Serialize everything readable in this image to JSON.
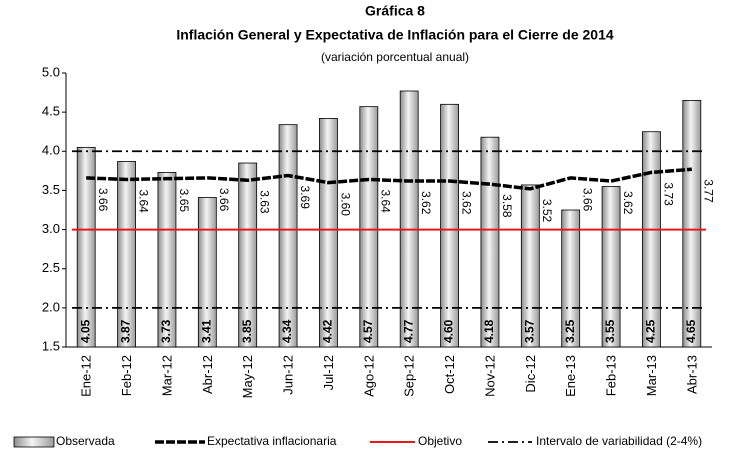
{
  "chart_data": {
    "type": "bar-line",
    "title": "Gráfica 8",
    "subtitle": "Inflación General y Expectativa de Inflación para el Cierre de 2014",
    "note": "(variación porcentual anual)",
    "categories": [
      "Ene-12",
      "Feb-12",
      "Mar-12",
      "Abr-12",
      "May-12",
      "Jun-12",
      "Jul-12",
      "Ago-12",
      "Sep-12",
      "Oct-12",
      "Nov-12",
      "Dic-12",
      "Ene-13",
      "Feb-13",
      "Mar-13",
      "Abr-13"
    ],
    "series": [
      {
        "name": "Observada",
        "type": "bar",
        "color": "#999999",
        "values": [
          4.05,
          3.87,
          3.73,
          3.41,
          3.85,
          4.34,
          4.42,
          4.57,
          4.77,
          4.6,
          4.18,
          3.57,
          3.25,
          3.55,
          4.25,
          4.65
        ],
        "value_labels": [
          "4.05",
          "3.87",
          "3.73",
          "3.41",
          "3.85",
          "4.34",
          "4.42",
          "4.57",
          "4.77",
          "4.60",
          "4.18",
          "3.57",
          "3.25",
          "3.55",
          "4.25",
          "4.65"
        ]
      },
      {
        "name": "Expectativa inflacionaria",
        "type": "line",
        "color": "#000000",
        "values": [
          3.66,
          3.64,
          3.65,
          3.66,
          3.63,
          3.69,
          3.6,
          3.64,
          3.62,
          3.62,
          3.58,
          3.52,
          3.66,
          3.62,
          3.73,
          3.77
        ],
        "value_labels": [
          "3.66",
          "3.64",
          "3.65",
          "3.66",
          "3.63",
          "3.69",
          "3.60",
          "3.64",
          "3.62",
          "3.62",
          "3.58",
          "3.52",
          "3.66",
          "3.62",
          "3.73",
          "3.77"
        ]
      }
    ],
    "reference_lines": [
      {
        "name": "Objetivo",
        "color": "#e8191a",
        "values": [
          3
        ]
      },
      {
        "name": "Intervalo de variabilidad (2-4%)",
        "color": "#000000",
        "values": [
          2,
          4
        ]
      }
    ],
    "ylim": [
      1.5,
      5.0
    ],
    "yticks": [
      1.5,
      {
        "value": 2,
        "label": "2.0"
      },
      2.5,
      {
        "value": 3,
        "label": "3.0"
      },
      3.5,
      {
        "value": 4,
        "label": "4.0"
      },
      4.5,
      {
        "value": 5,
        "label": "5.0"
      }
    ],
    "grid": false
  }
}
